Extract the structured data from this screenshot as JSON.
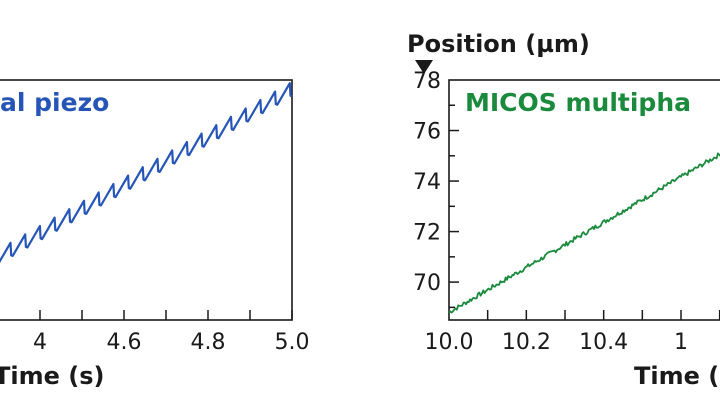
{
  "chart_data": [
    {
      "type": "line",
      "title": "",
      "xlabel": "Time (s)",
      "ylabel": "",
      "xlim": [
        4.3,
        5.0
      ],
      "ylim": [
        0,
        10
      ],
      "x_ticks": [
        "4",
        "4.6",
        "4.8",
        "5.0"
      ],
      "series": [
        {
          "name": "al piezo",
          "color": "#2655b8",
          "style": "sawtooth",
          "start": [
            4.3,
            2.5
          ],
          "end": [
            5.0,
            9.5
          ],
          "period": 0.035,
          "amplitude": 0.6
        }
      ]
    },
    {
      "type": "line",
      "title": "",
      "xlabel": "Time (",
      "ylabel": "Position (µm)",
      "xlim": [
        10.0,
        10.75
      ],
      "ylim": [
        68.5,
        78.0
      ],
      "x_ticks": [
        "10.0",
        "10.2",
        "10.4",
        "1"
      ],
      "y_ticks": [
        "70",
        "72",
        "74",
        "76",
        "78"
      ],
      "series": [
        {
          "name": "MICOS multipha",
          "color": "#1a8a3c",
          "style": "noisy",
          "start": [
            10.0,
            68.8
          ],
          "end": [
            10.75,
            75.5
          ]
        }
      ]
    }
  ]
}
